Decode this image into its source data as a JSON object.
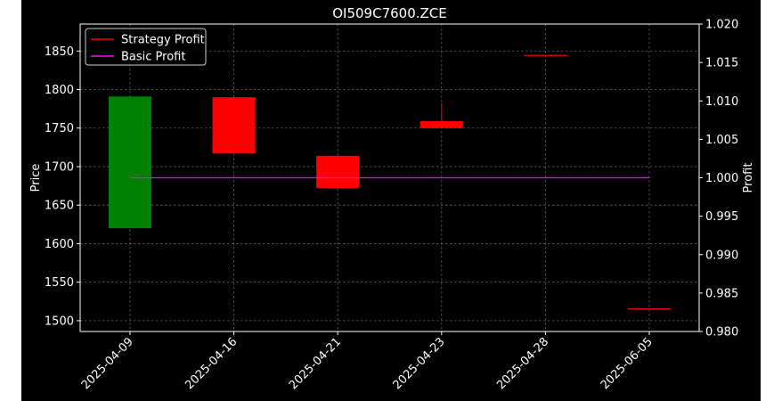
{
  "chart_data": {
    "type": "candlestick",
    "title": "OI509C7600.ZCE",
    "xlabel": "",
    "ylabel": "Price",
    "y2label": "Profit",
    "categories": [
      "2025-04-09",
      "2025-04-16",
      "2025-04-21",
      "2025-04-23",
      "2025-04-28",
      "2025-06-05"
    ],
    "candles": [
      {
        "date": "2025-04-09",
        "open": 1620,
        "high": 1791,
        "low": 1620,
        "close": 1791,
        "color": "#008000"
      },
      {
        "date": "2025-04-16",
        "open": 1790,
        "high": 1790,
        "low": 1717,
        "close": 1717,
        "color": "#ff0000"
      },
      {
        "date": "2025-04-21",
        "open": 1714,
        "high": 1714,
        "low": 1672,
        "close": 1672,
        "color": "#ff0000"
      },
      {
        "date": "2025-04-23",
        "open": 1759,
        "high": 1782,
        "low": 1750,
        "close": 1750,
        "color": "#ff0000"
      },
      {
        "date": "2025-04-28",
        "open": 1845,
        "high": 1845,
        "low": 1845,
        "close": 1845,
        "color": "#ff0000"
      },
      {
        "date": "2025-06-05",
        "open": 1516,
        "high": 1516,
        "low": 1516,
        "close": 1516,
        "color": "#ff0000"
      }
    ],
    "ylim": [
      1486,
      1885
    ],
    "yticks": [
      1500,
      1550,
      1600,
      1650,
      1700,
      1750,
      1800,
      1850
    ],
    "y2lim": [
      0.98,
      1.02
    ],
    "y2ticks": [
      0.98,
      0.985,
      0.99,
      0.995,
      1.0,
      1.005,
      1.01,
      1.015,
      1.02
    ],
    "y2tick_labels": [
      "0.980",
      "0.985",
      "0.990",
      "0.995",
      "1.000",
      "1.005",
      "1.010",
      "1.015",
      "1.020"
    ],
    "series": [
      {
        "name": "Strategy Profit",
        "color": "#ff0000",
        "values": [
          1.0,
          1.0,
          1.0,
          1.0,
          1.0,
          1.0
        ]
      },
      {
        "name": "Basic Profit",
        "color": "#ff00ff",
        "values": [
          1.0,
          1.0,
          1.0,
          1.0,
          1.0,
          1.0
        ]
      }
    ],
    "grid": true,
    "legend_position": "top-left",
    "background": "#000000"
  }
}
